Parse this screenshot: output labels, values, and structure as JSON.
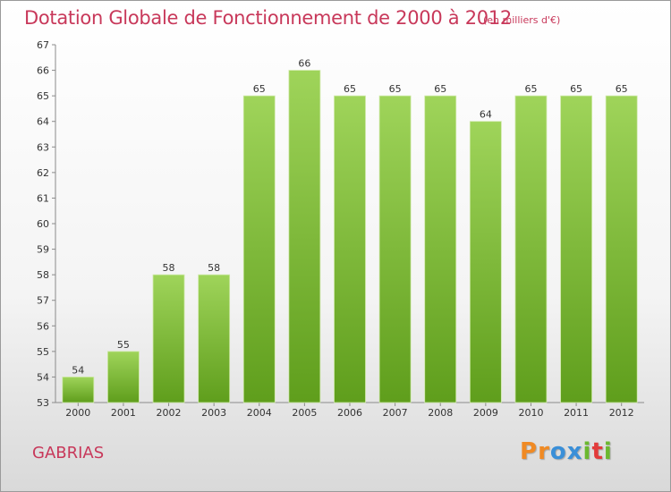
{
  "title": "Dotation Globale de Fonctionnement de 2000 à 2012",
  "unit": "(en milliers d'€)",
  "commune": "GABRIAS",
  "logo": {
    "text": "Proxiti",
    "letters": [
      "P",
      "r",
      "o",
      "x",
      "i",
      "t",
      "i"
    ],
    "colors": [
      "#f08a24",
      "#f08a24",
      "#3a8fd8",
      "#3a8fd8",
      "#6bb82f",
      "#e23b3b",
      "#6bb82f"
    ]
  },
  "colors": {
    "bar_top": "#9fd45a",
    "bar_bottom": "#5f9e1c",
    "text": "#c8385a"
  },
  "chart_data": {
    "type": "bar",
    "categories": [
      "2000",
      "2001",
      "2002",
      "2003",
      "2004",
      "2005",
      "2006",
      "2007",
      "2008",
      "2009",
      "2010",
      "2011",
      "2012"
    ],
    "values": [
      54,
      55,
      58,
      58,
      65,
      66,
      65,
      65,
      65,
      64,
      65,
      65,
      65
    ],
    "title": "Dotation Globale de Fonctionnement de 2000 à 2012",
    "ylim": [
      53,
      67
    ],
    "yticks": [
      53,
      54,
      55,
      56,
      57,
      58,
      59,
      60,
      61,
      62,
      63,
      64,
      65,
      66,
      67
    ],
    "grid": false,
    "data_labels": true
  }
}
